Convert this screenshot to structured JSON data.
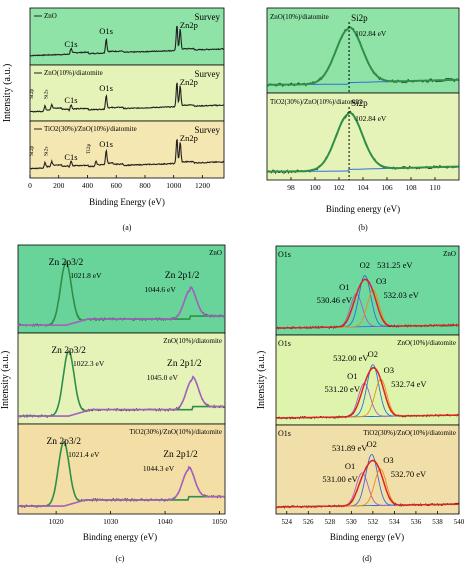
{
  "colors": {
    "green_bg": "#8fe3a6",
    "yellow_bg": "#e6f3b8",
    "tan_bg": "#f5e7b2",
    "panel_c_green": "#69d49a",
    "panel_c_tan": "#f3dfa6",
    "panel_d_green": "#6ed89e",
    "panel_d_yellow": "#def4ad",
    "panel_d_tan": "#f1dfa9",
    "spectrum": "#222222",
    "fit_green": "#2f8f49",
    "baseline_blue": "#2f6fdc",
    "fit_purple": "#a45fbf",
    "fit_orange": "#f08a18",
    "fit_red": "#e02222",
    "fit_gray": "#8a8a8a",
    "dotted_line": "#000000"
  },
  "chart_data": [
    {
      "panel": "(a)",
      "type": "line",
      "ylabel": "Intensity (a.u.)",
      "xlabel": "Binding Energy (eV)",
      "xlim": [
        0,
        1350
      ],
      "xticks": [
        0,
        200,
        400,
        600,
        800,
        1000,
        1200
      ],
      "subplots": [
        {
          "legend": "ZnO",
          "corner_label": "Survey",
          "peaks": [
            {
              "label": "C1s",
              "x": 285
            },
            {
              "label": "O1s",
              "x": 530
            },
            {
              "label": "Zn2p",
              "x": 1022
            }
          ]
        },
        {
          "legend": "ZnO(10%)/diatomite",
          "corner_label": "Survey",
          "peaks": [
            {
              "label": "Si2s",
              "x": 150
            },
            {
              "label": "Si2p",
              "x": 103
            },
            {
              "label": "C1s",
              "x": 285
            },
            {
              "label": "O1s",
              "x": 530
            },
            {
              "label": "Zn2p",
              "x": 1022
            }
          ]
        },
        {
          "legend": "TiO2(30%)/ZnO(10%)/diatomite",
          "corner_label": "Survey",
          "peaks": [
            {
              "label": "Si2s",
              "x": 150
            },
            {
              "label": "Si2p",
              "x": 103
            },
            {
              "label": "C1s",
              "x": 285
            },
            {
              "label": "Ti2p",
              "x": 458
            },
            {
              "label": "O1s",
              "x": 530
            },
            {
              "label": "Zn2p",
              "x": 1022
            }
          ]
        }
      ]
    },
    {
      "panel": "(b)",
      "type": "line",
      "xlabel": "Binding energy (eV)",
      "xlim": [
        96,
        112
      ],
      "xticks": [
        98,
        100,
        102,
        104,
        106,
        108,
        110
      ],
      "subplots": [
        {
          "legend": "ZnO(10%)/diatomite",
          "peak_label": "Si2p",
          "peak_value": "102.84 eV",
          "center": 102.84
        },
        {
          "legend": "TiO2(30%)/ZnO(10%)/diatomite",
          "peak_label": "Si2p",
          "peak_value": "102.84 eV",
          "center": 102.84
        }
      ]
    },
    {
      "panel": "(c)",
      "type": "line",
      "ylabel": "Intensity (a.u.)",
      "xlabel": "Binding energy (eV)",
      "xlim": [
        1013,
        1051
      ],
      "xticks": [
        1020,
        1030,
        1040,
        1050
      ],
      "subplots": [
        {
          "legend": "ZnO",
          "peaks": [
            {
              "label": "Zn 2p3/2",
              "value": "1021.8 eV",
              "center": 1021.8
            },
            {
              "label": "Zn 2p1/2",
              "value": "1044.6 eV",
              "center": 1044.6
            }
          ]
        },
        {
          "legend": "ZnO(10%)/diatomite",
          "peaks": [
            {
              "label": "Zn 2p3/2",
              "value": "1022.3 eV",
              "center": 1022.3
            },
            {
              "label": "Zn 2p1/2",
              "value": "1045.0 eV",
              "center": 1045.0
            }
          ]
        },
        {
          "legend": "TiO2(30%)/ZnO(10%)/diatomite",
          "peaks": [
            {
              "label": "Zn 2p3/2",
              "value": "1021.4 eV",
              "center": 1021.4
            },
            {
              "label": "Zn 2p1/2",
              "value": "1044.3 eV",
              "center": 1044.3
            }
          ]
        }
      ]
    },
    {
      "panel": "(d)",
      "type": "line",
      "ylabel": "Intensity (a.u.)",
      "xlabel": "Binding energy (eV)",
      "xlim": [
        523,
        540
      ],
      "xticks": [
        524,
        526,
        528,
        530,
        532,
        534,
        536,
        538,
        540
      ],
      "subplots": [
        {
          "legend": "ZnO",
          "corner_label": "O1s",
          "components": [
            {
              "label": "O1",
              "value": "530.46 eV",
              "center": 530.46
            },
            {
              "label": "O2",
              "value": "531.25 eV",
              "center": 531.25
            },
            {
              "label": "O3",
              "value": "532.03 eV",
              "center": 532.03
            }
          ]
        },
        {
          "legend": "ZnO(10%)/diatomite",
          "corner_label": "O1s",
          "components": [
            {
              "label": "O1",
              "value": "531.20 eV",
              "center": 531.2
            },
            {
              "label": "O2",
              "value": "532.00 eV",
              "center": 532.0
            },
            {
              "label": "O3",
              "value": "532.74 eV",
              "center": 532.74
            }
          ]
        },
        {
          "legend": "TiO2(30%)/ZnO(10%)/diatomite",
          "corner_label": "O1s",
          "components": [
            {
              "label": "O1",
              "value": "531.00 eV",
              "center": 531.0
            },
            {
              "label": "O2",
              "value": "531.89 eV",
              "center": 531.89
            },
            {
              "label": "O3",
              "value": "532.70 eV",
              "center": 532.7
            }
          ]
        }
      ]
    }
  ]
}
